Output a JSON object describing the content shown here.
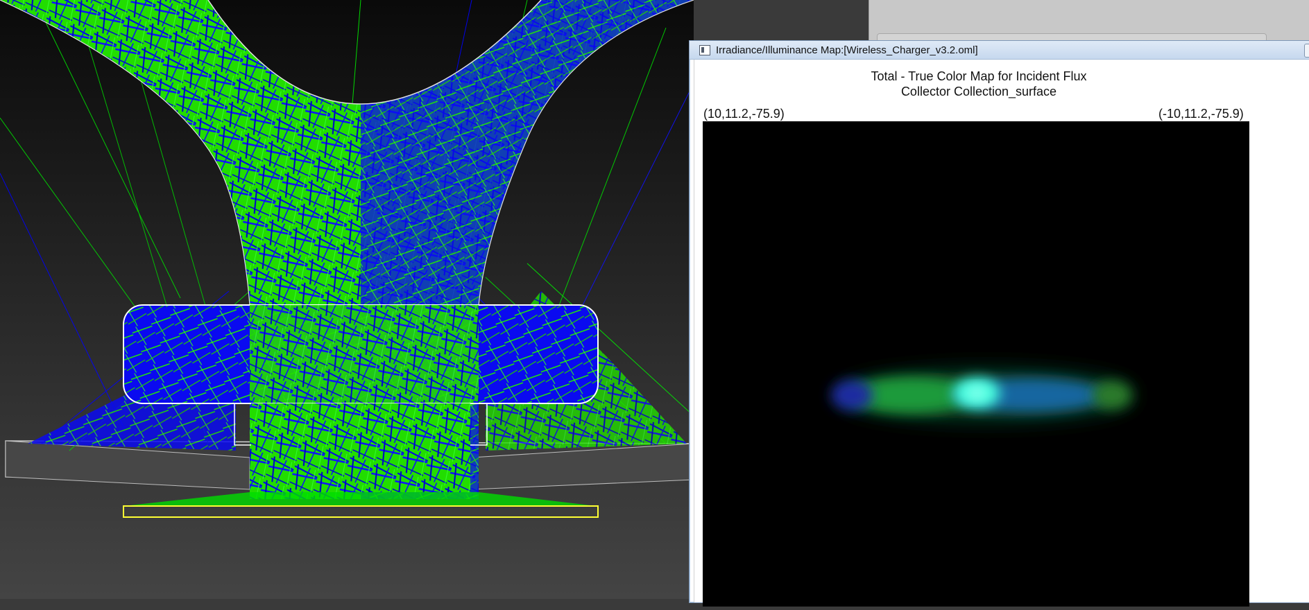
{
  "map_window": {
    "title": "Irradiance/Illuminance Map:[Wireless_Charger_v3.2.oml]",
    "heading_line1": "Total - True Color Map for Incident Flux",
    "heading_line2": "Collector Collection_surface",
    "corner_left": "(10,11.2,-75.9)",
    "corner_right": "(-10,11.2,-75.9)"
  },
  "colors": {
    "ray_green": "#00ff00",
    "ray_blue": "#0000ff",
    "collector_outline": "#ffff33",
    "map_cyan": "#33ffee"
  },
  "icons": {
    "app_icon": "app-icon",
    "close": "close-icon"
  }
}
